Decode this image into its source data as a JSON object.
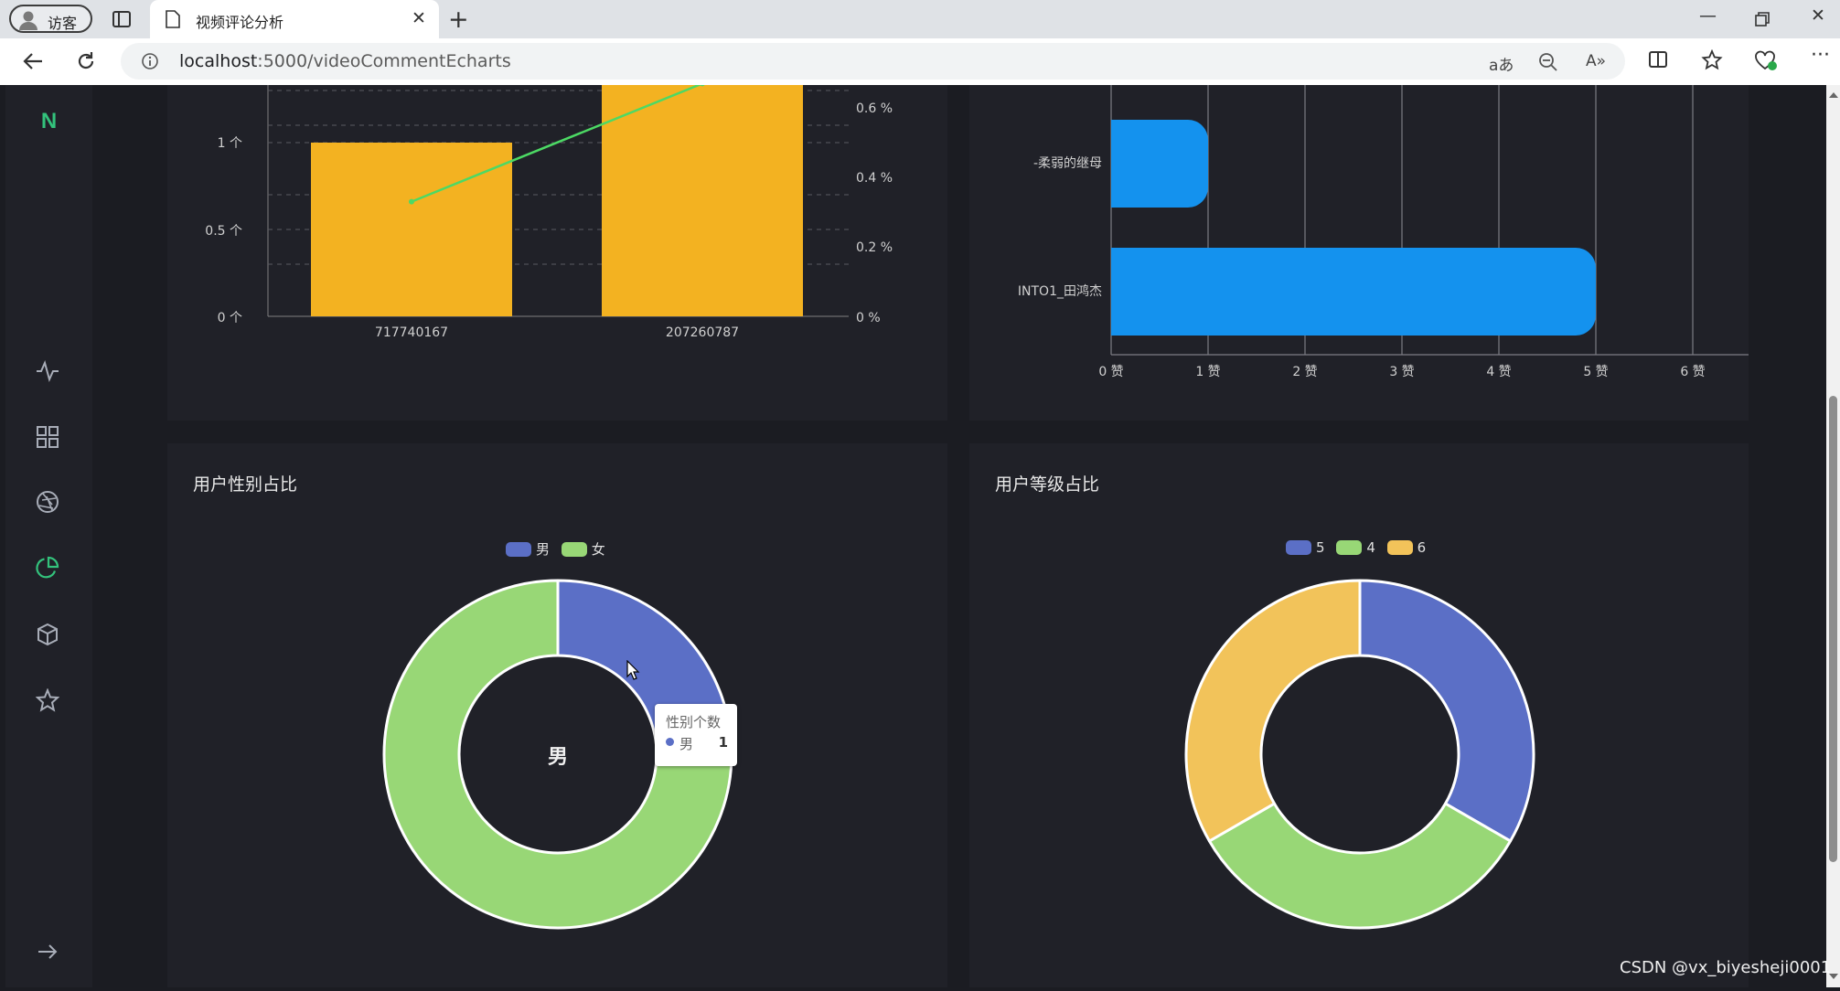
{
  "browser": {
    "profile_label": "访客",
    "tab_title": "视频评论分析",
    "url_host": "localhost",
    "url_path": ":5000/videoCommentEcharts"
  },
  "sidebar": {
    "logo": "N",
    "icons": [
      "activity-icon",
      "grid-icon",
      "aperture-icon",
      "pie-chart-icon",
      "box-icon",
      "star-icon",
      "arrow-right-icon"
    ],
    "active_icon": "pie-chart-icon"
  },
  "charts": {
    "top_left": {
      "type": "bar",
      "categories": [
        "717740167",
        "207260787"
      ],
      "bar_color": "#f3b221",
      "line_color": "#4cd964",
      "left_axis_ticks": [
        "0 个",
        "0.5 个",
        "1 个"
      ],
      "right_axis_ticks": [
        "0 %",
        "0.2 %",
        "0.4 %",
        "0.6 %"
      ]
    },
    "top_right": {
      "type": "bar",
      "categories": [
        "-柔弱的继母",
        "INTO1_田鸿杰"
      ],
      "values": [
        1,
        5
      ],
      "bar_color": "#1492ee",
      "x_ticks": [
        "0 赞",
        "1 赞",
        "2 赞",
        "3 赞",
        "4 赞",
        "5 赞",
        "6 赞"
      ]
    },
    "gender": {
      "title": "用户性别占比",
      "legend": [
        "男",
        "女"
      ],
      "colors": [
        "#5b6fc6",
        "#98d776"
      ],
      "center_label": "男",
      "tooltip": {
        "title": "性别个数",
        "name": "男",
        "value": "1"
      }
    },
    "level": {
      "title": "用户等级占比",
      "legend": [
        "5",
        "4",
        "6"
      ],
      "colors": [
        "#5b6fc6",
        "#98d776",
        "#f2c35a"
      ]
    }
  },
  "chart_data": [
    {
      "type": "bar",
      "categories": [
        "717740167",
        "207260787"
      ],
      "values": [
        1,
        1.5
      ],
      "line_values": [
        0.33,
        0.67
      ],
      "ylim_left": [
        0,
        1.5
      ],
      "ylim_right": [
        0,
        0.7
      ]
    },
    {
      "type": "bar",
      "orientation": "horizontal",
      "categories": [
        "-柔弱的继母",
        "INTO1_田鸿杰"
      ],
      "values": [
        1,
        5
      ],
      "xlim": [
        0,
        6
      ]
    },
    {
      "type": "pie",
      "title": "用户性别占比",
      "labels": [
        "男",
        "女"
      ],
      "values": [
        1,
        3
      ]
    },
    {
      "type": "pie",
      "title": "用户等级占比",
      "labels": [
        "5",
        "4",
        "6"
      ],
      "values": [
        1,
        1,
        1
      ]
    }
  ],
  "watermark": "CSDN @vx_biyesheji0001"
}
